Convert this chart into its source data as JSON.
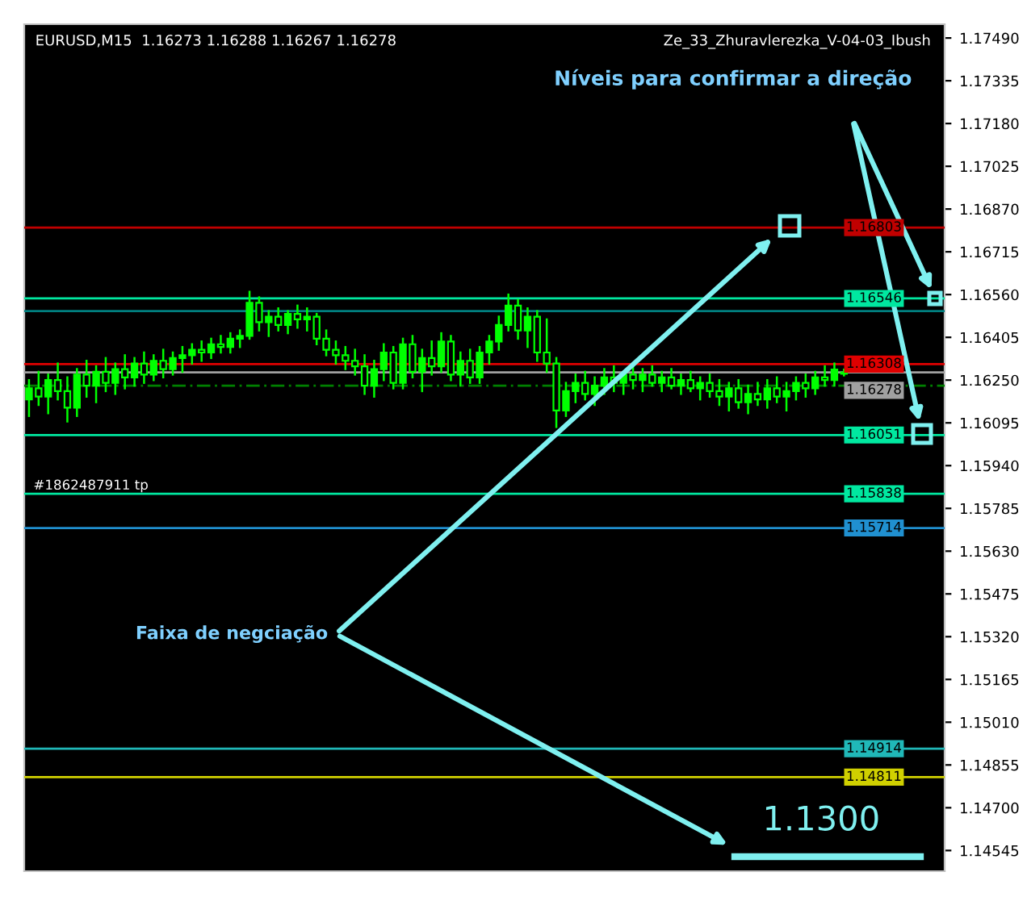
{
  "chart_data": {
    "type": "candlestick",
    "title": "EURUSD,M15  1.16273 1.16288 1.16267 1.16278",
    "annotations": [
      "Ze_33_Zhuravlerezka_V-04-03_Ibush",
      "Níveis para confirmar a direção",
      "Faixa de negciação",
      "1.1300",
      "#1862487911 tp"
    ],
    "categories": [
      null,
      null,
      null,
      null,
      null,
      null,
      null,
      null,
      null,
      null,
      null,
      null,
      null,
      null,
      null,
      null,
      null,
      null,
      null,
      null,
      null,
      null,
      null,
      null,
      null,
      null,
      null,
      null,
      null,
      null,
      null,
      null,
      null,
      null,
      null,
      null,
      null,
      null,
      null,
      null,
      null,
      null,
      null,
      null,
      null,
      null,
      null,
      null,
      null,
      null,
      null,
      null,
      null,
      null,
      null,
      null,
      null,
      null,
      null,
      null,
      null,
      null,
      null,
      null,
      null,
      null,
      null,
      null,
      null,
      null,
      null,
      null,
      null,
      null,
      null,
      null,
      null,
      null,
      null,
      null,
      null,
      null,
      null,
      null,
      null,
      null,
      null,
      null,
      null,
      null,
      null,
      null,
      null,
      null,
      null,
      null
    ],
    "series": [
      {
        "color": "#00ff00",
        "ohlc": [
          [
            1.1618,
            1.1625,
            1.1612,
            1.1622
          ],
          [
            1.1622,
            1.1628,
            1.1616,
            1.1619
          ],
          [
            1.1619,
            1.1627,
            1.1613,
            1.1625
          ],
          [
            1.1625,
            1.1631,
            1.1618,
            1.1621
          ],
          [
            1.1621,
            1.1626,
            1.161,
            1.1615
          ],
          [
            1.1615,
            1.1629,
            1.1612,
            1.1627
          ],
          [
            1.1627,
            1.1632,
            1.1619,
            1.1623
          ],
          [
            1.1623,
            1.163,
            1.1617,
            1.1628
          ],
          [
            1.1628,
            1.1633,
            1.1621,
            1.1624
          ],
          [
            1.1624,
            1.1631,
            1.162,
            1.1629
          ],
          [
            1.1629,
            1.1634,
            1.1622,
            1.1626
          ],
          [
            1.1626,
            1.1633,
            1.1623,
            1.1631
          ],
          [
            1.1631,
            1.1635,
            1.1624,
            1.1627
          ],
          [
            1.1627,
            1.1634,
            1.1625,
            1.1632
          ],
          [
            1.1632,
            1.1636,
            1.1626,
            1.1629
          ],
          [
            1.1629,
            1.1635,
            1.1627,
            1.1633
          ],
          [
            1.1633,
            1.1637,
            1.1628,
            1.1634
          ],
          [
            1.1634,
            1.1638,
            1.1631,
            1.1636
          ],
          [
            1.1636,
            1.1639,
            1.1632,
            1.1635
          ],
          [
            1.1635,
            1.164,
            1.1633,
            1.1638
          ],
          [
            1.1638,
            1.1641,
            1.1635,
            1.1637
          ],
          [
            1.1637,
            1.1642,
            1.1635,
            1.164
          ],
          [
            1.164,
            1.1643,
            1.1637,
            1.1641
          ],
          [
            1.1641,
            1.1657,
            1.164,
            1.1653
          ],
          [
            1.1653,
            1.1655,
            1.1643,
            1.1646
          ],
          [
            1.1646,
            1.165,
            1.1641,
            1.1648
          ],
          [
            1.1648,
            1.1651,
            1.1643,
            1.1645
          ],
          [
            1.1645,
            1.165,
            1.1642,
            1.1649
          ],
          [
            1.1649,
            1.1652,
            1.1644,
            1.1647
          ],
          [
            1.1647,
            1.1651,
            1.1643,
            1.1648
          ],
          [
            1.1648,
            1.1649,
            1.1638,
            1.164
          ],
          [
            1.164,
            1.1643,
            1.1634,
            1.1636
          ],
          [
            1.1636,
            1.1639,
            1.1631,
            1.1634
          ],
          [
            1.1634,
            1.1637,
            1.1629,
            1.1632
          ],
          [
            1.1632,
            1.1636,
            1.1627,
            1.163
          ],
          [
            1.163,
            1.1634,
            1.162,
            1.1623
          ],
          [
            1.1623,
            1.1632,
            1.1619,
            1.1629
          ],
          [
            1.1629,
            1.1638,
            1.1625,
            1.1635
          ],
          [
            1.1635,
            1.1637,
            1.1622,
            1.1624
          ],
          [
            1.1624,
            1.164,
            1.1622,
            1.1638
          ],
          [
            1.1638,
            1.1641,
            1.1626,
            1.1628
          ],
          [
            1.1628,
            1.1636,
            1.1621,
            1.1633
          ],
          [
            1.1633,
            1.1639,
            1.1627,
            1.163
          ],
          [
            1.163,
            1.1642,
            1.1628,
            1.1639
          ],
          [
            1.1639,
            1.1641,
            1.1625,
            1.1627
          ],
          [
            1.1627,
            1.1635,
            1.1623,
            1.1632
          ],
          [
            1.1632,
            1.1636,
            1.1624,
            1.1626
          ],
          [
            1.1626,
            1.1637,
            1.1624,
            1.1635
          ],
          [
            1.1635,
            1.1641,
            1.1631,
            1.1639
          ],
          [
            1.1639,
            1.1648,
            1.1636,
            1.1645
          ],
          [
            1.1645,
            1.1656,
            1.1643,
            1.1652
          ],
          [
            1.1652,
            1.1654,
            1.164,
            1.1643
          ],
          [
            1.1643,
            1.1651,
            1.1637,
            1.1648
          ],
          [
            1.1648,
            1.165,
            1.1632,
            1.1635
          ],
          [
            1.1635,
            1.1647,
            1.1628,
            1.1631
          ],
          [
            1.1631,
            1.1633,
            1.1608,
            1.1614
          ],
          [
            1.1614,
            1.1624,
            1.1612,
            1.1621
          ],
          [
            1.1621,
            1.1627,
            1.1617,
            1.1624
          ],
          [
            1.1624,
            1.1628,
            1.1618,
            1.162
          ],
          [
            1.162,
            1.1626,
            1.1616,
            1.1623
          ],
          [
            1.1623,
            1.1629,
            1.162,
            1.1626
          ],
          [
            1.1626,
            1.163,
            1.1621,
            1.1624
          ],
          [
            1.1624,
            1.1628,
            1.162,
            1.1627
          ],
          [
            1.1627,
            1.163,
            1.1622,
            1.1625
          ],
          [
            1.1625,
            1.1629,
            1.1621,
            1.1627
          ],
          [
            1.1627,
            1.163,
            1.1623,
            1.1624
          ],
          [
            1.1624,
            1.1628,
            1.1621,
            1.1626
          ],
          [
            1.1626,
            1.1629,
            1.1622,
            1.1623
          ],
          [
            1.1623,
            1.1627,
            1.162,
            1.1625
          ],
          [
            1.1625,
            1.1628,
            1.1621,
            1.1622
          ],
          [
            1.1622,
            1.1626,
            1.1618,
            1.1624
          ],
          [
            1.1624,
            1.1627,
            1.1619,
            1.1621
          ],
          [
            1.1621,
            1.1625,
            1.1616,
            1.1619
          ],
          [
            1.1619,
            1.1624,
            1.1614,
            1.1622
          ],
          [
            1.1622,
            1.1625,
            1.1615,
            1.1617
          ],
          [
            1.1617,
            1.1623,
            1.1613,
            1.162
          ],
          [
            1.162,
            1.1624,
            1.1616,
            1.1618
          ],
          [
            1.1618,
            1.1625,
            1.1615,
            1.1622
          ],
          [
            1.1622,
            1.1626,
            1.1617,
            1.1619
          ],
          [
            1.1619,
            1.1624,
            1.1614,
            1.1621
          ],
          [
            1.1621,
            1.1626,
            1.1618,
            1.1624
          ],
          [
            1.1624,
            1.1627,
            1.1619,
            1.1622
          ],
          [
            1.1622,
            1.1628,
            1.162,
            1.1626
          ],
          [
            1.1626,
            1.163,
            1.1623,
            1.1625
          ],
          [
            1.1625,
            1.1631,
            1.1623,
            1.16288
          ],
          [
            1.16273,
            1.16288,
            1.16267,
            1.16278
          ],
          null,
          null,
          null,
          null,
          null,
          null,
          null,
          null,
          null,
          null
        ]
      }
    ],
    "ylim": [
      1.1447,
      1.1754
    ],
    "yticks": [
      {
        "value": 1.1749,
        "label": "1.17490"
      },
      {
        "value": 1.17335,
        "label": "1.17335"
      },
      {
        "value": 1.1718,
        "label": "1.17180"
      },
      {
        "value": 1.17025,
        "label": "1.17025"
      },
      {
        "value": 1.1687,
        "label": "1.16870"
      },
      {
        "value": 1.16715,
        "label": "1.16715"
      },
      {
        "value": 1.1656,
        "label": "1.16560"
      },
      {
        "value": 1.16405,
        "label": "1.16405"
      },
      {
        "value": 1.1625,
        "label": "1.16250"
      },
      {
        "value": 1.16095,
        "label": "1.16095"
      },
      {
        "value": 1.1594,
        "label": "1.15940"
      },
      {
        "value": 1.15785,
        "label": "1.15785"
      },
      {
        "value": 1.1563,
        "label": "1.15630"
      },
      {
        "value": 1.15475,
        "label": "1.15475"
      },
      {
        "value": 1.1532,
        "label": "1.15320"
      },
      {
        "value": 1.15165,
        "label": "1.15165"
      },
      {
        "value": 1.1501,
        "label": "1.15010"
      },
      {
        "value": 1.14855,
        "label": "1.14855"
      },
      {
        "value": 1.147,
        "label": "1.14700"
      },
      {
        "value": 1.14545,
        "label": "1.14545"
      }
    ],
    "ref_lines": [
      {
        "axis": "y",
        "value": 1.16803,
        "label": "1.16803",
        "color": "#c00000"
      },
      {
        "axis": "y",
        "value": 1.16546,
        "label": "1.16546",
        "color": "#00e8a0"
      },
      {
        "axis": "y",
        "value": 1.165,
        "color": "#008080"
      },
      {
        "axis": "y",
        "value": 1.16308,
        "label": "1.16308",
        "color": "#e00000"
      },
      {
        "axis": "y",
        "value": 1.16278,
        "label": "1.16278",
        "color": "#a0a0a0"
      },
      {
        "axis": "y",
        "value": 1.1623,
        "color": "#008000",
        "line_style": "dashed"
      },
      {
        "axis": "y",
        "value": 1.16051,
        "label": "1.16051",
        "color": "#00e8a0"
      },
      {
        "axis": "y",
        "value": 1.15838,
        "label": "1.15838",
        "color": "#00e8a0"
      },
      {
        "axis": "y",
        "value": 1.15714,
        "label": "1.15714",
        "color": "#2090d0"
      },
      {
        "axis": "y",
        "value": 1.14914,
        "label": "1.14914",
        "color": "#20b8b8"
      },
      {
        "axis": "y",
        "value": 1.14811,
        "label": "1.14811",
        "color": "#d0d000"
      }
    ],
    "grid": false,
    "legend": false,
    "tick_labels": "y"
  }
}
